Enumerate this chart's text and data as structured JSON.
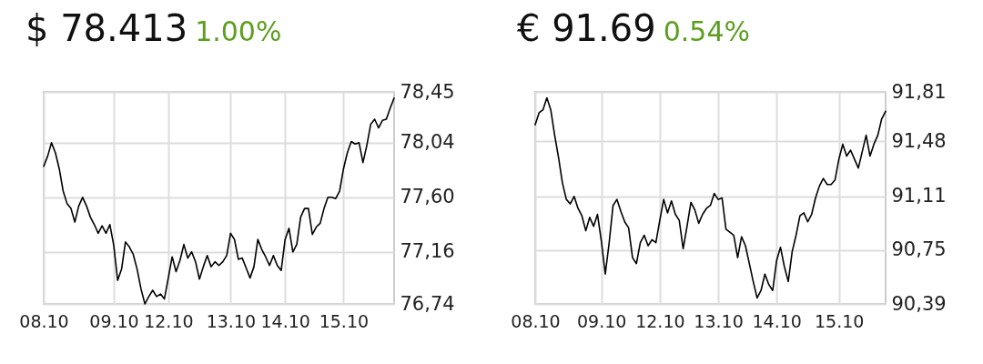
{
  "chart_data": [
    {
      "type": "line",
      "title": "$ 78.413",
      "subtitle": "1.00%",
      "color": "#000000",
      "grid": true,
      "categories": [
        "08.10",
        null,
        null,
        null,
        null,
        null,
        null,
        null,
        null,
        null,
        null,
        null,
        null,
        null,
        null,
        null,
        null,
        null,
        "09.10",
        null,
        null,
        null,
        null,
        null,
        null,
        null,
        null,
        null,
        null,
        null,
        null,
        null,
        "12.10",
        null,
        null,
        null,
        null,
        null,
        null,
        null,
        null,
        null,
        null,
        null,
        null,
        null,
        null,
        null,
        "13.10",
        null,
        null,
        null,
        null,
        null,
        null,
        null,
        null,
        null,
        null,
        null,
        null,
        null,
        "14.10",
        null,
        null,
        null,
        null,
        null,
        null,
        null,
        null,
        null,
        null,
        null,
        null,
        null,
        null,
        "15.10",
        null,
        null,
        null,
        null,
        null,
        null,
        null,
        null,
        null,
        null,
        null,
        null,
        null
      ],
      "values": [
        77.85,
        77.93,
        78.04,
        77.96,
        77.83,
        77.65,
        77.55,
        77.51,
        77.4,
        77.53,
        77.6,
        77.53,
        77.44,
        77.38,
        77.31,
        77.37,
        77.31,
        77.38,
        77.21,
        76.93,
        77.02,
        77.24,
        77.2,
        77.14,
        77.02,
        76.86,
        76.74,
        76.8,
        76.85,
        76.8,
        76.82,
        76.78,
        76.95,
        77.12,
        77.0,
        77.09,
        77.22,
        77.11,
        77.16,
        77.08,
        76.94,
        77.04,
        77.13,
        77.04,
        77.08,
        77.05,
        77.08,
        77.13,
        77.31,
        77.26,
        77.1,
        77.11,
        77.03,
        76.95,
        77.04,
        77.26,
        77.18,
        77.12,
        77.05,
        77.13,
        77.05,
        77.01,
        77.26,
        77.35,
        77.16,
        77.22,
        77.44,
        77.51,
        77.51,
        77.3,
        77.36,
        77.39,
        77.51,
        77.6,
        77.6,
        77.59,
        77.65,
        77.83,
        77.96,
        78.05,
        78.03,
        78.04,
        77.88,
        78.02,
        78.19,
        78.23,
        78.16,
        78.22,
        78.23,
        78.32,
        78.4
      ],
      "ylim": [
        76.74,
        78.45
      ],
      "yticks": [
        {
          "value": 76.74,
          "label": "76,74"
        },
        {
          "value": 77.16,
          "label": "77,16"
        },
        {
          "value": 77.6,
          "label": "77,60"
        },
        {
          "value": 78.04,
          "label": "78,04"
        },
        {
          "value": 78.45,
          "label": "78,45"
        }
      ]
    },
    {
      "type": "line",
      "title": "€ 91.69",
      "subtitle": "0.54%",
      "color": "#000000",
      "grid": true,
      "categories": [
        "08.10",
        null,
        null,
        null,
        null,
        null,
        null,
        null,
        null,
        null,
        null,
        null,
        null,
        null,
        null,
        null,
        null,
        "09.10",
        null,
        null,
        null,
        null,
        null,
        null,
        null,
        null,
        null,
        null,
        null,
        null,
        null,
        null,
        "12.10",
        null,
        null,
        null,
        null,
        null,
        null,
        null,
        null,
        null,
        null,
        null,
        null,
        null,
        null,
        "13.10",
        null,
        null,
        null,
        null,
        null,
        null,
        null,
        null,
        null,
        null,
        null,
        null,
        null,
        null,
        "14.10",
        null,
        null,
        null,
        null,
        null,
        null,
        null,
        null,
        null,
        null,
        null,
        null,
        null,
        null,
        null,
        "15.10",
        null,
        null,
        null,
        null,
        null,
        null,
        null,
        null,
        null,
        null,
        null,
        null
      ],
      "values": [
        91.59,
        91.67,
        91.69,
        91.77,
        91.69,
        91.52,
        91.37,
        91.2,
        91.09,
        91.06,
        91.11,
        91.03,
        90.98,
        90.88,
        90.97,
        90.91,
        90.99,
        90.81,
        90.59,
        90.8,
        91.05,
        91.09,
        91.01,
        90.94,
        90.9,
        90.7,
        90.66,
        90.8,
        90.85,
        90.78,
        90.82,
        90.8,
        90.95,
        91.09,
        91.0,
        91.08,
        90.99,
        90.95,
        90.76,
        90.91,
        91.07,
        91.02,
        90.93,
        90.99,
        91.03,
        91.05,
        91.13,
        91.09,
        91.1,
        90.89,
        90.87,
        90.85,
        90.7,
        90.84,
        90.78,
        90.66,
        90.54,
        90.43,
        90.48,
        90.59,
        90.52,
        90.48,
        90.68,
        90.77,
        90.64,
        90.54,
        90.74,
        90.85,
        90.98,
        91.0,
        90.94,
        90.99,
        91.1,
        91.18,
        91.23,
        91.19,
        91.19,
        91.22,
        91.36,
        91.46,
        91.38,
        91.42,
        91.36,
        91.3,
        91.41,
        91.52,
        91.38,
        91.46,
        91.52,
        91.63,
        91.68
      ],
      "ylim": [
        90.39,
        91.81
      ],
      "yticks": [
        {
          "value": 90.39,
          "label": "90,39"
        },
        {
          "value": 90.75,
          "label": "90,75"
        },
        {
          "value": 91.11,
          "label": "91,11"
        },
        {
          "value": 91.48,
          "label": "91,48"
        },
        {
          "value": 91.81,
          "label": "91,81"
        }
      ]
    }
  ]
}
